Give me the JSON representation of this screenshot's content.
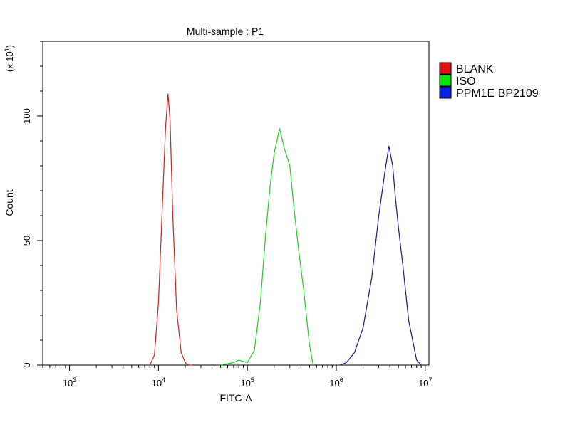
{
  "chart_data": {
    "type": "line",
    "title": "Multi-sample : P1",
    "xlabel": "FITC-A",
    "ylabel": "Count",
    "y_multiplier_label": "(x 10^1)",
    "x_scale": "log",
    "xlim": [
      500,
      11000000
    ],
    "ylim": [
      0,
      130
    ],
    "grid": false,
    "legend_position": "right",
    "x_ticks": [
      {
        "value": 1000,
        "base": "10",
        "exp": "3"
      },
      {
        "value": 10000,
        "base": "10",
        "exp": "4"
      },
      {
        "value": 100000,
        "base": "10",
        "exp": "5"
      },
      {
        "value": 1000000,
        "base": "10",
        "exp": "6"
      },
      {
        "value": 10000000,
        "base": "10",
        "exp": "7"
      }
    ],
    "y_ticks": [
      {
        "value": 0,
        "label": "0"
      },
      {
        "value": 50,
        "label": "50"
      },
      {
        "value": 100,
        "label": "100"
      }
    ],
    "series": [
      {
        "name": "BLANK",
        "color": "#cc2222",
        "legend_color": "#e01010",
        "x": [
          8000,
          9000,
          10000,
          11000,
          12000,
          12800,
          13500,
          14500,
          16000,
          18000,
          20000,
          22000,
          24000
        ],
        "y": [
          0,
          4,
          25,
          62,
          95,
          109,
          98,
          60,
          22,
          5,
          1,
          0,
          0
        ]
      },
      {
        "name": "ISO",
        "color": "#22cc22",
        "legend_color": "#10e010",
        "x": [
          50000,
          70000,
          80000,
          100000,
          120000,
          140000,
          160000,
          180000,
          200000,
          230000,
          260000,
          300000,
          330000,
          380000,
          430000,
          500000,
          550000
        ],
        "y": [
          0,
          1,
          2,
          1,
          6,
          25,
          52,
          72,
          85,
          95,
          87,
          80,
          65,
          45,
          30,
          8,
          0
        ]
      },
      {
        "name": "PPM1E BP2109",
        "color": "#1a1a80",
        "legend_color": "#1020e0",
        "x": [
          1100000,
          1300000,
          1600000,
          2000000,
          2500000,
          3000000,
          3500000,
          3900000,
          4300000,
          4600000,
          5000000,
          5600000,
          6500000,
          8000000,
          9000000
        ],
        "y": [
          0,
          1,
          5,
          15,
          35,
          60,
          77,
          88,
          80,
          68,
          55,
          40,
          18,
          2,
          0
        ]
      }
    ]
  }
}
